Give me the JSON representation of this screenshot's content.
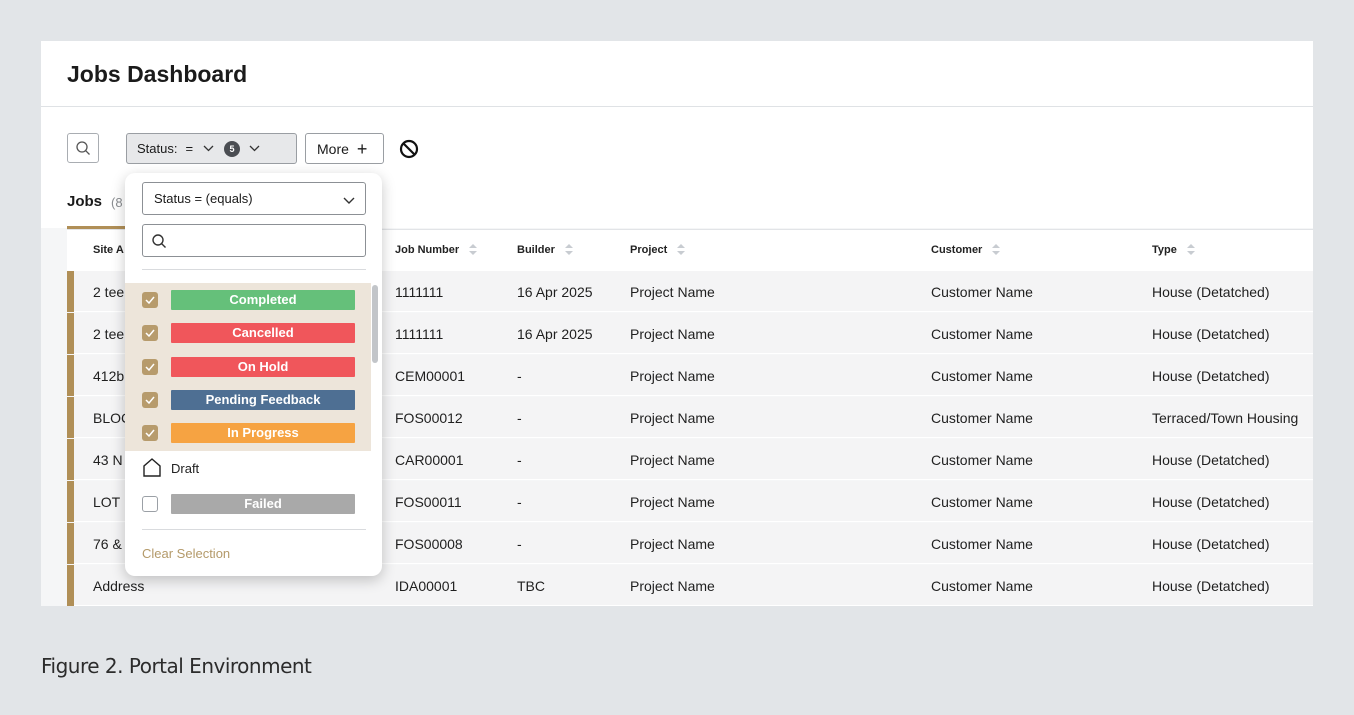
{
  "page": {
    "title": "Jobs Dashboard"
  },
  "toolbar": {
    "status_label": "Status:",
    "status_operator": "=",
    "status_count": "5",
    "more_label": "More",
    "more_plus": "+"
  },
  "jobs": {
    "heading": "Jobs",
    "count_partial": "(8"
  },
  "table": {
    "headers": {
      "site": "Site A",
      "job_number": "Job Number",
      "builder": "Builder",
      "project": "Project",
      "customer": "Customer",
      "type": "Type"
    },
    "rows": [
      {
        "site": "2 tee",
        "job_number": "1111111",
        "builder": "16 Apr 2025",
        "project": "Project Name",
        "customer": "Customer Name",
        "type": "House (Detatched)"
      },
      {
        "site": "2 tee",
        "job_number": "1111111",
        "builder": "16 Apr 2025",
        "project": "Project Name",
        "customer": "Customer Name",
        "type": "House (Detatched)"
      },
      {
        "site": "412b",
        "job_number": "CEM00001",
        "builder": "-",
        "project": "Project Name",
        "customer": "Customer Name",
        "type": "House (Detatched)"
      },
      {
        "site": "BLOC",
        "job_number": "FOS00012",
        "builder": "-",
        "project": "Project Name",
        "customer": "Customer Name",
        "type": "Terraced/Town Housing"
      },
      {
        "site": "43 N",
        "job_number": "CAR00001",
        "builder": "-",
        "project": "Project Name",
        "customer": "Customer Name",
        "type": "House (Detatched)"
      },
      {
        "site": "LOT",
        "job_number": "FOS00011",
        "builder": "-",
        "project": "Project Name",
        "customer": "Customer Name",
        "type": "House (Detatched)"
      },
      {
        "site": "76 &",
        "job_number": "FOS00008",
        "builder": "-",
        "project": "Project Name",
        "customer": "Customer Name",
        "type": "House (Detatched)"
      },
      {
        "site": "Address",
        "job_number": "IDA00001",
        "builder": "TBC",
        "project": "Project Name",
        "customer": "Customer Name",
        "type": "House (Detatched)"
      }
    ]
  },
  "dropdown": {
    "operator": "Status = (equals)",
    "search_placeholder": "",
    "options": [
      {
        "label": "Completed",
        "checked": true,
        "color": "#65c07a"
      },
      {
        "label": "Cancelled",
        "checked": true,
        "color": "#f0565b"
      },
      {
        "label": "On Hold",
        "checked": true,
        "color": "#f0565b"
      },
      {
        "label": "Pending Feedback",
        "checked": true,
        "color": "#4e6f93"
      },
      {
        "label": "In Progress",
        "checked": true,
        "color": "#f6a342"
      },
      {
        "label": "Draft",
        "checked": false,
        "color": "",
        "icon": "house-icon"
      },
      {
        "label": "Failed",
        "checked": false,
        "color": "#a9a9a9"
      }
    ],
    "clear_label": "Clear Selection"
  },
  "caption": "Figure 2. Portal Environment",
  "colors": {
    "accent": "#b08f57",
    "selected_bg": "#ede5da"
  }
}
